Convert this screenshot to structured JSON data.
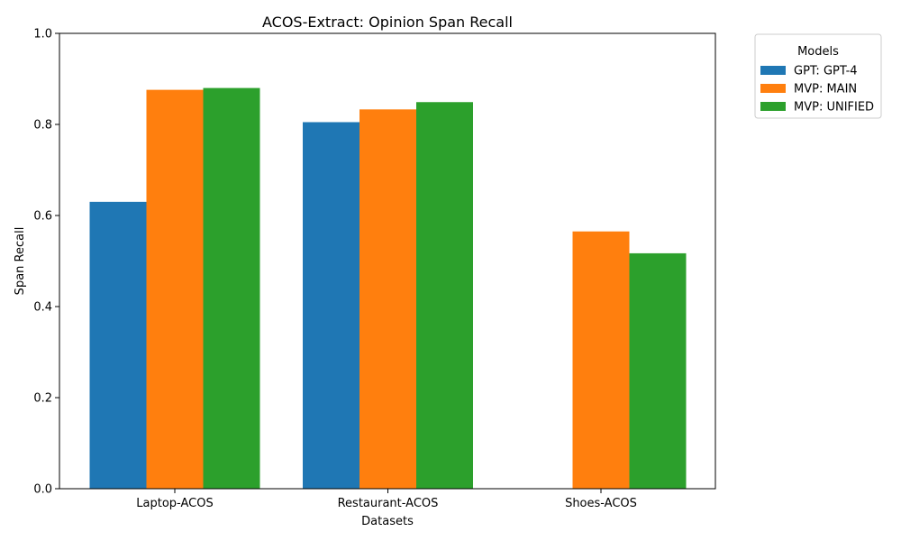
{
  "chart_data": {
    "type": "bar",
    "title": "ACOS-Extract: Opinion Span Recall",
    "xlabel": "Datasets",
    "ylabel": "Span Recall",
    "ylim": [
      0,
      1.0
    ],
    "yticks": [
      "0.0",
      "0.2",
      "0.4",
      "0.6",
      "0.8",
      "1.0"
    ],
    "categories": [
      "Laptop-ACOS",
      "Restaurant-ACOS",
      "Shoes-ACOS"
    ],
    "series": [
      {
        "name": "GPT: GPT-4",
        "color": "#1f77b4",
        "values": [
          0.63,
          0.805,
          null
        ]
      },
      {
        "name": "MVP: MAIN",
        "color": "#ff7f0e",
        "values": [
          0.876,
          0.833,
          0.565
        ]
      },
      {
        "name": "MVP: UNIFIED",
        "color": "#2ca02c",
        "values": [
          0.88,
          0.849,
          0.517
        ]
      }
    ],
    "legend": {
      "title": "Models",
      "position": "outside-top-right"
    },
    "grid": false
  }
}
